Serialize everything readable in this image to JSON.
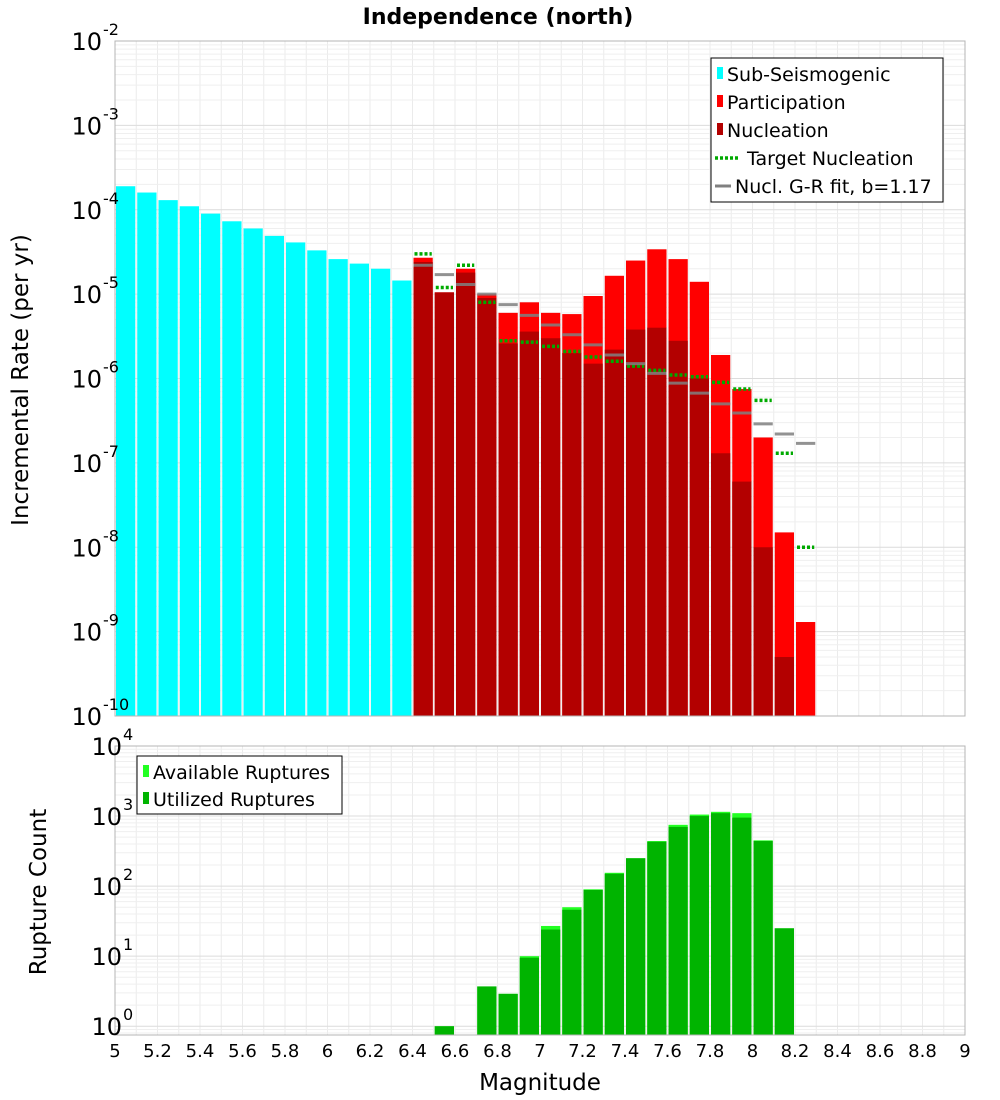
{
  "chart_data": [
    {
      "type": "bar",
      "title": "Independence (north)",
      "xlabel": "",
      "ylabel": "Incremental Rate (per yr)",
      "yscale": "log",
      "ylim": [
        1e-10,
        0.01
      ],
      "xlim": [
        5,
        9
      ],
      "grid": true,
      "legend_position": "top-right",
      "bar_width": 0.1,
      "series": [
        {
          "name": "Sub-Seismogenic",
          "color": "#00ffff",
          "style": "bar",
          "x": [
            5.05,
            5.15,
            5.25,
            5.35,
            5.45,
            5.55,
            5.65,
            5.75,
            5.85,
            5.95,
            6.05,
            6.15,
            6.25,
            6.35
          ],
          "values": [
            0.00019,
            0.00016,
            0.00013,
            0.00011,
            9e-05,
            7.3e-05,
            6e-05,
            4.9e-05,
            4.1e-05,
            3.3e-05,
            2.6e-05,
            2.3e-05,
            2e-05,
            1.45e-05
          ]
        },
        {
          "name": "Participation",
          "color": "#ff0000",
          "style": "bar",
          "x": [
            6.45,
            6.55,
            6.65,
            6.75,
            6.85,
            6.95,
            7.05,
            7.15,
            7.25,
            7.35,
            7.45,
            7.55,
            7.65,
            7.75,
            7.85,
            7.95,
            8.05,
            8.15,
            8.25
          ],
          "values": [
            2.7e-05,
            1.05e-05,
            2e-05,
            1e-05,
            6e-06,
            8e-06,
            6e-06,
            5.8e-06,
            9.5e-06,
            1.65e-05,
            2.5e-05,
            3.4e-05,
            2.6e-05,
            1.4e-05,
            1.9e-06,
            7.5e-07,
            2e-07,
            1.5e-08,
            1.3e-09
          ]
        },
        {
          "name": "Nucleation",
          "color": "#b30000",
          "style": "bar",
          "x": [
            6.45,
            6.55,
            6.65,
            6.75,
            6.85,
            6.95,
            7.05,
            7.15,
            7.25,
            7.35,
            7.45,
            7.55,
            7.65,
            7.75,
            7.85,
            7.95,
            8.05,
            8.15
          ],
          "values": [
            2.4e-05,
            1.05e-05,
            1.8e-05,
            9e-06,
            2.6e-06,
            3.6e-06,
            3e-06,
            2e-06,
            1.5e-06,
            2.2e-06,
            3.8e-06,
            4e-06,
            2.8e-06,
            1e-06,
            1.3e-07,
            6e-08,
            1e-08,
            5e-10
          ]
        },
        {
          "name": "Target Nucleation",
          "color": "#00aa00",
          "style": "dotted-step",
          "x": [
            6.45,
            6.55,
            6.65,
            6.75,
            6.85,
            6.95,
            7.05,
            7.15,
            7.25,
            7.35,
            7.45,
            7.55,
            7.65,
            7.75,
            7.85,
            7.95,
            8.05,
            8.15,
            8.25
          ],
          "values": [
            3e-05,
            1.2e-05,
            2.2e-05,
            8e-06,
            2.8e-06,
            2.7e-06,
            2.4e-06,
            2.1e-06,
            1.8e-06,
            1.6e-06,
            1.4e-06,
            1.25e-06,
            1.1e-06,
            1.05e-06,
            9e-07,
            7.5e-07,
            5.5e-07,
            1.3e-07,
            1e-08
          ]
        },
        {
          "name": "Nucl. G-R fit, b=1.17",
          "color": "#808080",
          "style": "step",
          "x": [
            6.45,
            6.55,
            6.65,
            6.75,
            6.85,
            6.95,
            7.05,
            7.15,
            7.25,
            7.35,
            7.45,
            7.55,
            7.65,
            7.75,
            7.85,
            7.95,
            8.05,
            8.15,
            8.25
          ],
          "values": [
            2.2e-05,
            1.7e-05,
            1.3e-05,
            1e-05,
            7.5e-06,
            5.6e-06,
            4.3e-06,
            3.3e-06,
            2.5e-06,
            1.9e-06,
            1.5e-06,
            1.15e-06,
            8.8e-07,
            6.7e-07,
            5e-07,
            3.9e-07,
            2.9e-07,
            2.2e-07,
            1.7e-07
          ]
        }
      ]
    },
    {
      "type": "bar",
      "title": "",
      "xlabel": "Magnitude",
      "ylabel": "Rupture Count",
      "yscale": "log",
      "ylim": [
        0.75,
        10000.0
      ],
      "xlim": [
        5,
        9
      ],
      "xticks": [
        "5",
        "5.2",
        "5.4",
        "5.6",
        "5.8",
        "6",
        "6.2",
        "6.4",
        "6.6",
        "6.8",
        "7",
        "7.2",
        "7.4",
        "7.6",
        "7.8",
        "8",
        "8.2",
        "8.4",
        "8.6",
        "8.8",
        "9"
      ],
      "grid": true,
      "legend_position": "top-left",
      "bar_width": 0.1,
      "series": [
        {
          "name": "Available Ruptures",
          "color": "#22ff22",
          "style": "bar",
          "x": [
            6.55,
            6.75,
            6.85,
            6.95,
            7.05,
            7.15,
            7.25,
            7.35,
            7.45,
            7.55,
            7.65,
            7.75,
            7.85,
            7.95,
            8.05,
            8.15
          ],
          "values": [
            1,
            3.7,
            2.9,
            10,
            27,
            50,
            90,
            155,
            250,
            440,
            750,
            1050,
            1150,
            1100,
            450,
            25
          ]
        },
        {
          "name": "Utilized Ruptures",
          "color": "#00b400",
          "style": "bar",
          "x": [
            6.55,
            6.75,
            6.85,
            6.95,
            7.05,
            7.15,
            7.25,
            7.35,
            7.45,
            7.55,
            7.65,
            7.75,
            7.85,
            7.95,
            8.05,
            8.15
          ],
          "values": [
            1,
            3.7,
            2.9,
            9.5,
            24,
            46,
            88,
            150,
            250,
            430,
            700,
            1000,
            1100,
            950,
            440,
            25
          ]
        }
      ]
    }
  ]
}
